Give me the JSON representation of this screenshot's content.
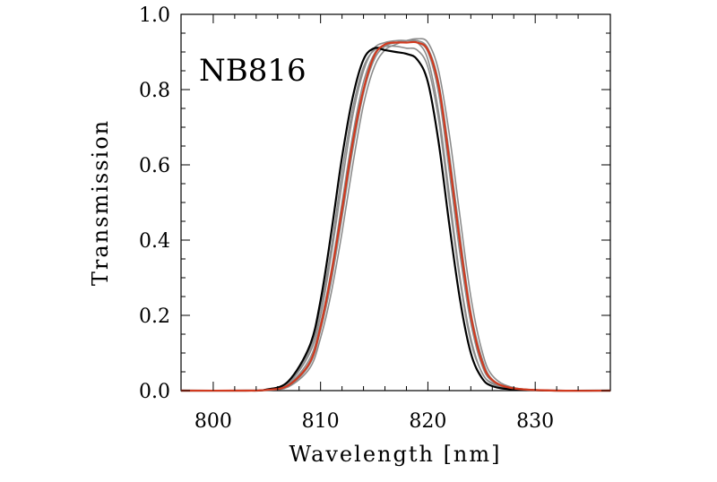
{
  "chart_data": {
    "type": "line",
    "title": "",
    "panel_label": "NB816",
    "xlabel": "Wavelength [nm]",
    "ylabel": "Transmission",
    "xlim": [
      797,
      837
    ],
    "ylim": [
      0.0,
      1.0
    ],
    "x_ticks": [
      800,
      810,
      820,
      830
    ],
    "x_tick_labels": [
      "800",
      "810",
      "820",
      "830"
    ],
    "y_ticks": [
      0.0,
      0.2,
      0.4,
      0.6,
      0.8,
      1.0
    ],
    "y_tick_labels": [
      "0.0",
      "0.2",
      "0.4",
      "0.6",
      "0.8",
      "1.0"
    ],
    "grid": false,
    "legend": "none",
    "colors": {
      "individual": "#8c8c8c",
      "black_curve": "#000000",
      "red_curve": "#d23a1f"
    },
    "series": [
      {
        "style": "gray",
        "x": [
          797,
          803,
          805,
          807,
          809,
          810,
          811,
          812,
          813,
          814,
          815,
          816,
          817,
          818,
          819,
          820,
          821,
          822,
          823,
          824,
          825,
          826,
          828,
          832,
          837
        ],
        "y": [
          0.0,
          0.0,
          0.003,
          0.02,
          0.1,
          0.2,
          0.36,
          0.55,
          0.73,
          0.85,
          0.91,
          0.925,
          0.93,
          0.93,
          0.925,
          0.88,
          0.74,
          0.52,
          0.3,
          0.14,
          0.05,
          0.02,
          0.005,
          0.0,
          0.0
        ]
      },
      {
        "style": "gray",
        "x": [
          797,
          803,
          805,
          807,
          809,
          810,
          811,
          812,
          813,
          814,
          815,
          816,
          817,
          818,
          819,
          820,
          821,
          822,
          823,
          824,
          825,
          826,
          828,
          832,
          837
        ],
        "y": [
          0.0,
          0.0,
          0.002,
          0.016,
          0.085,
          0.18,
          0.32,
          0.5,
          0.68,
          0.82,
          0.895,
          0.92,
          0.925,
          0.925,
          0.925,
          0.9,
          0.79,
          0.58,
          0.36,
          0.18,
          0.07,
          0.025,
          0.006,
          0.0,
          0.0
        ]
      },
      {
        "style": "gray",
        "x": [
          797,
          803,
          805,
          807,
          809,
          810,
          811,
          812,
          813,
          814,
          815,
          816,
          817,
          818,
          819,
          820,
          821,
          822,
          823,
          824,
          825,
          826,
          828,
          832,
          837
        ],
        "y": [
          0.0,
          0.0,
          0.002,
          0.012,
          0.07,
          0.16,
          0.29,
          0.46,
          0.64,
          0.79,
          0.88,
          0.915,
          0.925,
          0.93,
          0.93,
          0.91,
          0.82,
          0.63,
          0.41,
          0.21,
          0.09,
          0.03,
          0.007,
          0.0,
          0.0
        ]
      },
      {
        "style": "gray",
        "x": [
          797,
          803,
          805,
          807,
          809,
          810,
          811,
          812,
          813,
          814,
          815,
          816,
          817,
          818,
          819,
          820,
          821,
          822,
          823,
          824,
          825,
          826,
          828,
          832,
          837
        ],
        "y": [
          0.0,
          0.0,
          0.001,
          0.01,
          0.06,
          0.14,
          0.26,
          0.42,
          0.6,
          0.76,
          0.86,
          0.905,
          0.92,
          0.93,
          0.935,
          0.925,
          0.85,
          0.68,
          0.46,
          0.25,
          0.11,
          0.04,
          0.008,
          0.0,
          0.0
        ]
      },
      {
        "style": "gray",
        "x": [
          797,
          803,
          805,
          807,
          809,
          810,
          811,
          812,
          813,
          814,
          815,
          816,
          817,
          818,
          819,
          820,
          821,
          822,
          823,
          824,
          825,
          826,
          828,
          832,
          837
        ],
        "y": [
          0.0,
          0.0,
          0.003,
          0.022,
          0.11,
          0.22,
          0.38,
          0.58,
          0.75,
          0.86,
          0.905,
          0.915,
          0.915,
          0.91,
          0.905,
          0.86,
          0.72,
          0.5,
          0.29,
          0.13,
          0.05,
          0.018,
          0.004,
          0.0,
          0.0
        ]
      },
      {
        "style": "black",
        "x": [
          797,
          803,
          805,
          807,
          809,
          810,
          811,
          812,
          813,
          814,
          815,
          816,
          817,
          818,
          819,
          820,
          821,
          822,
          823,
          824,
          825,
          826,
          828,
          832,
          837
        ],
        "y": [
          0.0,
          0.0,
          0.003,
          0.025,
          0.12,
          0.24,
          0.42,
          0.62,
          0.78,
          0.88,
          0.91,
          0.905,
          0.9,
          0.895,
          0.88,
          0.82,
          0.66,
          0.44,
          0.24,
          0.1,
          0.035,
          0.012,
          0.003,
          0.0,
          0.0
        ]
      },
      {
        "style": "red",
        "x": [
          797,
          803,
          805,
          807,
          809,
          810,
          811,
          812,
          813,
          814,
          815,
          816,
          817,
          818,
          819,
          820,
          821,
          822,
          823,
          824,
          825,
          826,
          828,
          832,
          837
        ],
        "y": [
          0.0,
          0.0,
          0.002,
          0.014,
          0.075,
          0.17,
          0.31,
          0.48,
          0.66,
          0.8,
          0.89,
          0.92,
          0.925,
          0.925,
          0.925,
          0.905,
          0.81,
          0.61,
          0.39,
          0.2,
          0.08,
          0.028,
          0.006,
          0.0,
          0.0
        ]
      }
    ]
  }
}
